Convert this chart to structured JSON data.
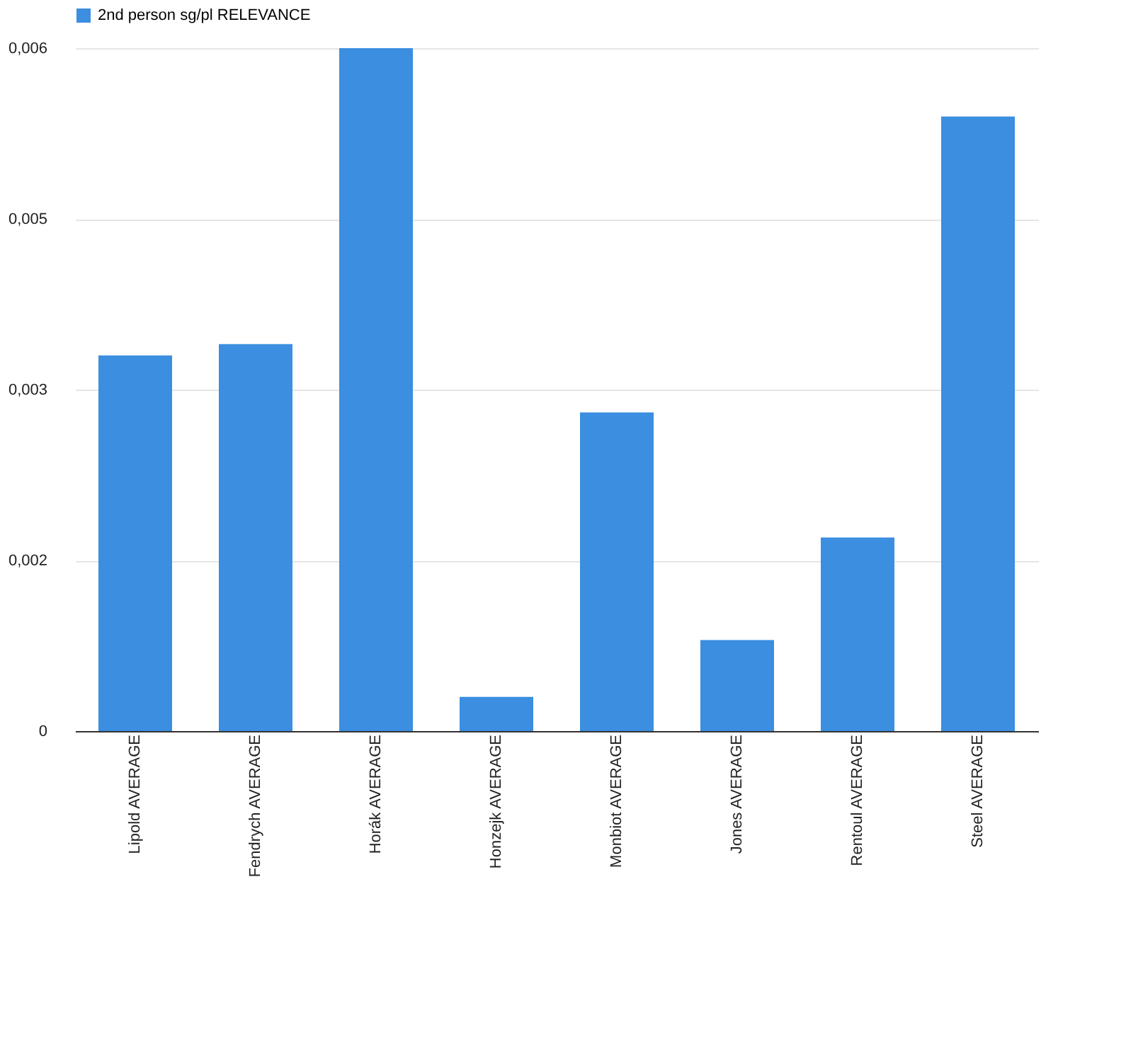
{
  "chart_data": {
    "type": "bar",
    "categories": [
      "Lipold AVERAGE",
      "Fendrych AVERAGE",
      "Horák AVERAGE",
      "Honzejk AVERAGE",
      "Monbiot AVERAGE",
      "Jones AVERAGE",
      "Rentoul AVERAGE",
      "Steel AVERAGE"
    ],
    "series": [
      {
        "name": "2nd person sg/pl RELEVANCE",
        "color": "#3b8ee0",
        "values": [
          0.0033,
          0.0034,
          0.006,
          0.0003,
          0.0028,
          0.0008,
          0.0017,
          0.0054
        ]
      }
    ],
    "ylim": [
      0,
      0.006
    ],
    "yticks": [
      0,
      {
        "value": 0.0015,
        "label": "0,002"
      },
      {
        "value": 0.003,
        "label": "0,003"
      },
      {
        "value": 0.0045,
        "label": "0,005"
      },
      {
        "value": 0.006,
        "label": "0,006"
      }
    ],
    "grid": "y",
    "legend": "top"
  }
}
